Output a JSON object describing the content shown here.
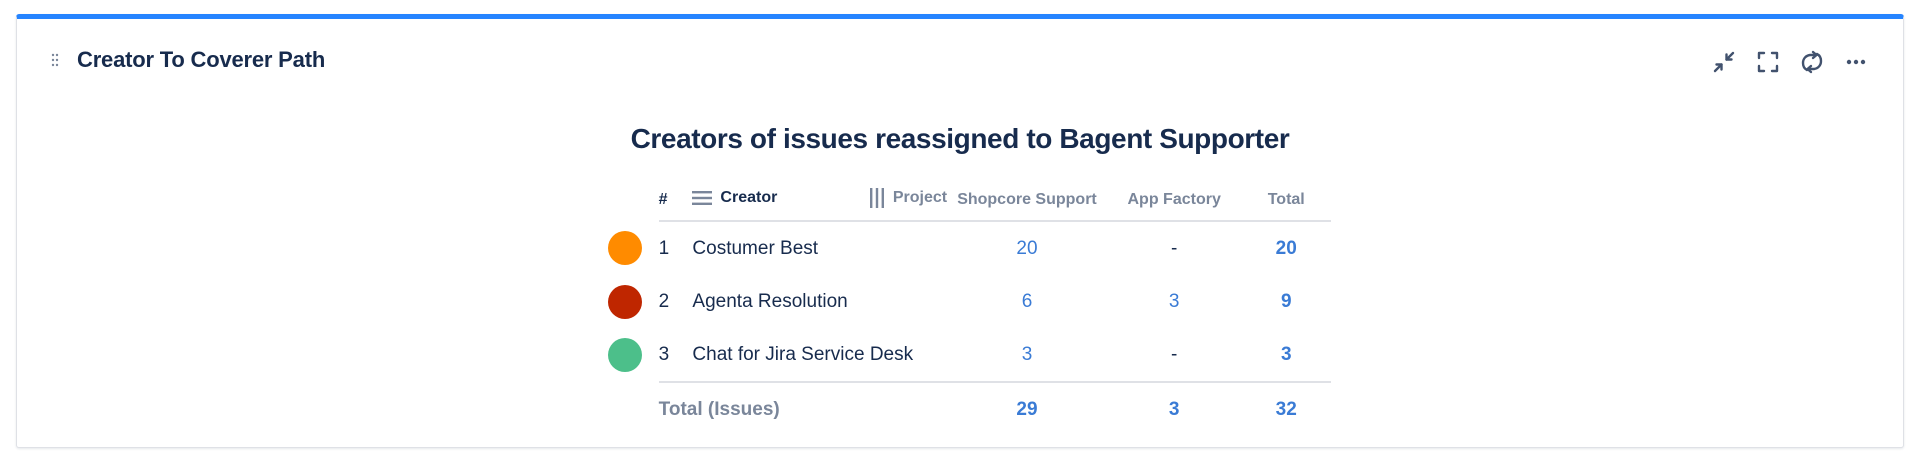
{
  "gadget": {
    "title": "Creator To Coverer Path",
    "accent_color": "#2684ff",
    "actions": [
      {
        "icon": "minimize-icon"
      },
      {
        "icon": "fullscreen-icon"
      },
      {
        "icon": "refresh-icon"
      },
      {
        "icon": "more-icon"
      }
    ]
  },
  "report": {
    "title": "Creators of issues reassigned to Bagent Supporter",
    "columns": {
      "index": "#",
      "creator": "Creator",
      "project": "Project",
      "shopcore": "Shopcore Support",
      "appfactory": "App Factory",
      "total": "Total"
    },
    "rows": [
      {
        "color": "#ff8b00",
        "index": "1",
        "creator": "Costumer Best",
        "shopcore": "20",
        "appfactory": "-",
        "total": "20"
      },
      {
        "color": "#bf2600",
        "index": "2",
        "creator": "Agenta Resolution",
        "shopcore": "6",
        "appfactory": "3",
        "total": "9"
      },
      {
        "color": "#4cbf8a",
        "index": "3",
        "creator": "Chat for Jira Service Desk",
        "shopcore": "3",
        "appfactory": "-",
        "total": "3"
      }
    ],
    "footer": {
      "label": "Total (Issues)",
      "shopcore": "29",
      "appfactory": "3",
      "total": "32"
    }
  }
}
